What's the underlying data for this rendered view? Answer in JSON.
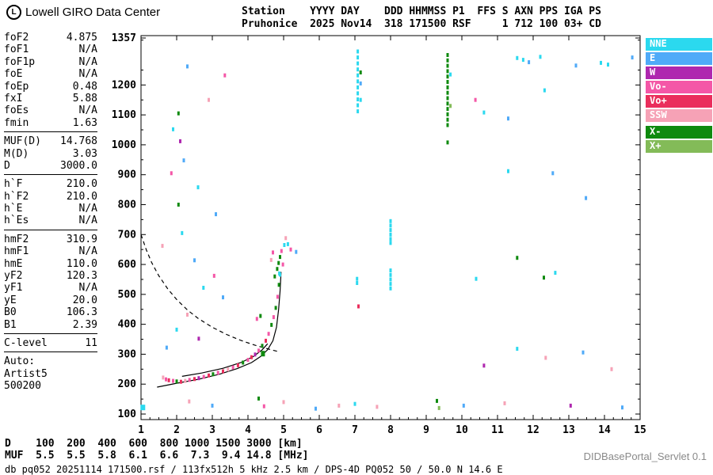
{
  "branding": {
    "logo_text": "Lowell GIRO Data Center"
  },
  "header": {
    "line1": "Station    YYYY DAY    DDD HHMMSS P1  FFS S AXN PPS IGA PS",
    "line2": "Pruhonice  2025 Nov14  318 171500 RSF     1 712 100 03+ CD"
  },
  "params": {
    "groups": [
      {
        "rows": [
          [
            "foF2",
            "4.875"
          ],
          [
            "foF1",
            "N/A"
          ],
          [
            "foF1p",
            "N/A"
          ],
          [
            "foE",
            "N/A"
          ],
          [
            "foEp",
            "0.48"
          ],
          [
            "fxI",
            "5.88"
          ],
          [
            "foEs",
            "N/A"
          ],
          [
            "fmin",
            "1.63"
          ]
        ]
      },
      {
        "rows": [
          [
            "MUF(D)",
            "14.768"
          ],
          [
            "M(D)",
            "3.03"
          ],
          [
            "D",
            "3000.0"
          ]
        ]
      },
      {
        "rows": [
          [
            "h`F",
            "210.0"
          ],
          [
            "h`F2",
            "210.0"
          ],
          [
            "h`E",
            "N/A"
          ],
          [
            "h`Es",
            "N/A"
          ]
        ]
      },
      {
        "rows": [
          [
            "hmF2",
            "310.9"
          ],
          [
            "hmF1",
            "N/A"
          ],
          [
            "hmE",
            "110.0"
          ],
          [
            "yF2",
            "120.3"
          ],
          [
            "yF1",
            "N/A"
          ],
          [
            "yE",
            "20.0"
          ],
          [
            "B0",
            "106.3"
          ],
          [
            "B1",
            "2.39"
          ]
        ]
      },
      {
        "rows": [
          [
            "C-level",
            "11"
          ]
        ]
      }
    ],
    "auto_block": [
      "Auto:",
      "Artist5",
      "500200"
    ]
  },
  "legend": {
    "items": [
      {
        "label": "NNE",
        "color": "#2bd9ef"
      },
      {
        "label": "E",
        "color": "#4faaf8"
      },
      {
        "label": "W",
        "color": "#af27af"
      },
      {
        "label": "Vo-",
        "color": "#f457a7"
      },
      {
        "label": "Vo+",
        "color": "#ea2e5c"
      },
      {
        "label": "SSW",
        "color": "#f6a2b6"
      },
      {
        "label": "X-",
        "color": "#0f8a0f"
      },
      {
        "label": "X+",
        "color": "#83bb58"
      }
    ]
  },
  "chart_data": {
    "type": "scatter",
    "title": "Pruhonice ionogram 2025 Nov14 318 171500",
    "xlabel": "[MHz]",
    "ylabel": "[km]",
    "xlim": [
      1,
      15
    ],
    "ylim": [
      100,
      1357
    ],
    "x_ticks": [
      1,
      2,
      3,
      4,
      5,
      6,
      7,
      8,
      9,
      10,
      11,
      12,
      13,
      14,
      15
    ],
    "y_ticks": [
      100,
      200,
      300,
      400,
      500,
      600,
      700,
      800,
      900,
      1000,
      1100,
      1200,
      1357
    ],
    "grid": false,
    "legend_position": "right-outside",
    "series_note": "points are [frequency_MHz, virtual_height_km, echo_type] with optional [w,h] pixel size",
    "points": [
      [
        2.3,
        1262,
        "E"
      ],
      [
        3.35,
        1232,
        "Vo-"
      ],
      [
        2.9,
        1150,
        "SSW"
      ],
      [
        2.05,
        1105,
        "X-"
      ],
      [
        1.9,
        1052,
        "NNE"
      ],
      [
        2.1,
        1012,
        "W"
      ],
      [
        2.2,
        948,
        "E"
      ],
      [
        1.85,
        905,
        "Vo-"
      ],
      [
        2.6,
        858,
        "NNE"
      ],
      [
        2.05,
        800,
        "X-"
      ],
      [
        3.1,
        768,
        "E"
      ],
      [
        2.15,
        705,
        "NNE"
      ],
      [
        1.6,
        662,
        "SSW"
      ],
      [
        2.5,
        614,
        "E"
      ],
      [
        3.05,
        562,
        "Vo-"
      ],
      [
        2.75,
        522,
        "NNE"
      ],
      [
        3.3,
        490,
        "E"
      ],
      [
        2.3,
        432,
        "SSW"
      ],
      [
        2.0,
        382,
        "NNE"
      ],
      [
        2.62,
        352,
        "W"
      ],
      [
        1.72,
        322,
        "E"
      ],
      [
        7.08,
        1312,
        "NNE"
      ],
      [
        7.08,
        1292,
        "NNE"
      ],
      [
        7.08,
        1272,
        "NNE"
      ],
      [
        7.08,
        1252,
        "NNE"
      ],
      [
        7.08,
        1232,
        "NNE"
      ],
      [
        7.08,
        1212,
        "NNE"
      ],
      [
        7.08,
        1192,
        "NNE"
      ],
      [
        7.08,
        1172,
        "NNE"
      ],
      [
        7.08,
        1152,
        "NNE"
      ],
      [
        7.08,
        1132,
        "NNE"
      ],
      [
        7.08,
        1112,
        "NNE"
      ],
      [
        7.16,
        1242,
        "X-"
      ],
      [
        7.16,
        1205,
        "E"
      ],
      [
        7.16,
        1150,
        "NNE"
      ],
      [
        9.6,
        1300,
        "X-"
      ],
      [
        9.6,
        1282,
        "X-"
      ],
      [
        9.6,
        1264,
        "X-"
      ],
      [
        9.6,
        1246,
        "X-"
      ],
      [
        9.6,
        1228,
        "X-"
      ],
      [
        9.6,
        1210,
        "X-"
      ],
      [
        9.6,
        1192,
        "X-"
      ],
      [
        9.6,
        1174,
        "X-"
      ],
      [
        9.6,
        1156,
        "X-"
      ],
      [
        9.6,
        1138,
        "X-"
      ],
      [
        9.6,
        1120,
        "X-"
      ],
      [
        9.6,
        1102,
        "X-"
      ],
      [
        9.6,
        1084,
        "X-"
      ],
      [
        9.6,
        1066,
        "X-"
      ],
      [
        9.68,
        1235,
        "NNE"
      ],
      [
        9.68,
        1130,
        "X+"
      ],
      [
        9.6,
        1008,
        "X-"
      ],
      [
        11.55,
        1290,
        "NNE"
      ],
      [
        11.72,
        1284,
        "NNE"
      ],
      [
        11.88,
        1276,
        "E"
      ],
      [
        12.2,
        1294,
        "NNE"
      ],
      [
        12.32,
        1182,
        "NNE"
      ],
      [
        13.2,
        1265,
        "E"
      ],
      [
        13.9,
        1274,
        "NNE"
      ],
      [
        14.1,
        1268,
        "NNE"
      ],
      [
        14.78,
        1292,
        "E"
      ],
      [
        10.38,
        1150,
        "Vo-"
      ],
      [
        10.62,
        1108,
        "NNE"
      ],
      [
        11.3,
        1088,
        "E"
      ],
      [
        11.3,
        912,
        "NNE"
      ],
      [
        12.55,
        905,
        "E"
      ],
      [
        13.48,
        822,
        "E"
      ],
      [
        8.0,
        745,
        "NNE"
      ],
      [
        8.0,
        730,
        "NNE"
      ],
      [
        8.0,
        715,
        "NNE"
      ],
      [
        8.0,
        700,
        "NNE"
      ],
      [
        8.0,
        685,
        "NNE"
      ],
      [
        8.0,
        672,
        "NNE"
      ],
      [
        8.0,
        580,
        "NNE"
      ],
      [
        8.0,
        565,
        "NNE"
      ],
      [
        8.0,
        550,
        "NNE"
      ],
      [
        8.0,
        535,
        "NNE"
      ],
      [
        8.0,
        520,
        "NNE"
      ],
      [
        7.06,
        552,
        "NNE"
      ],
      [
        7.06,
        538,
        "NNE"
      ],
      [
        7.1,
        460,
        "Vo+"
      ],
      [
        10.4,
        552,
        "NNE"
      ],
      [
        11.55,
        622,
        "X-"
      ],
      [
        12.3,
        556,
        "X-"
      ],
      [
        12.62,
        572,
        "NNE"
      ],
      [
        11.55,
        318,
        "NNE"
      ],
      [
        12.35,
        288,
        "SSW"
      ],
      [
        13.4,
        306,
        "E"
      ],
      [
        10.62,
        262,
        "W"
      ],
      [
        14.2,
        250,
        "SSW"
      ],
      [
        4.82,
        585,
        "X-"
      ],
      [
        4.86,
        605,
        "X-"
      ],
      [
        4.9,
        625,
        "X-"
      ],
      [
        4.94,
        645,
        "Vo-"
      ],
      [
        4.98,
        600,
        "Vo-"
      ],
      [
        4.88,
        570,
        "NNE"
      ],
      [
        5.02,
        665,
        "NNE"
      ],
      [
        5.06,
        688,
        "SSW"
      ],
      [
        5.12,
        668,
        "NNE"
      ],
      [
        5.2,
        650,
        "Vo-"
      ],
      [
        5.35,
        642,
        "E"
      ],
      [
        4.75,
        560,
        "X-"
      ],
      [
        4.7,
        640,
        "Vo-"
      ],
      [
        4.65,
        615,
        "SSW"
      ],
      [
        1.62,
        222,
        "SSW"
      ],
      [
        1.7,
        216,
        "Vo-"
      ],
      [
        1.78,
        213,
        "Vo+"
      ],
      [
        1.9,
        211,
        "Vo-"
      ],
      [
        2.0,
        209,
        "X-"
      ],
      [
        2.12,
        208,
        "Vo+"
      ],
      [
        2.24,
        211,
        "SSW"
      ],
      [
        2.36,
        214,
        "Vo-"
      ],
      [
        2.5,
        217,
        "Vo+"
      ],
      [
        2.62,
        220,
        "W"
      ],
      [
        2.76,
        224,
        "Vo-"
      ],
      [
        2.9,
        229,
        "Vo+"
      ],
      [
        3.02,
        233,
        "X-"
      ],
      [
        3.16,
        238,
        "Vo-"
      ],
      [
        3.3,
        243,
        "Vo+"
      ],
      [
        3.44,
        249,
        "SSW"
      ],
      [
        3.58,
        256,
        "Vo-"
      ],
      [
        3.72,
        263,
        "Vo+"
      ],
      [
        3.86,
        272,
        "X-"
      ],
      [
        4.0,
        281,
        "Vo-"
      ],
      [
        4.1,
        290,
        "Vo+"
      ],
      [
        4.2,
        299,
        "W"
      ],
      [
        4.3,
        312,
        "Vo-"
      ],
      [
        4.42,
        302,
        "X-",
        5,
        7
      ],
      [
        4.4,
        328,
        "X-"
      ],
      [
        4.5,
        345,
        "Vo+"
      ],
      [
        4.58,
        368,
        "Vo-"
      ],
      [
        4.66,
        398,
        "X-"
      ],
      [
        4.72,
        424,
        "Vo-"
      ],
      [
        4.78,
        455,
        "X-"
      ],
      [
        4.83,
        492,
        "Vo-"
      ],
      [
        4.87,
        532,
        "X-"
      ],
      [
        4.9,
        566,
        "NNE"
      ],
      [
        4.25,
        418,
        "Vo-"
      ],
      [
        4.35,
        428,
        "X-"
      ],
      [
        1.05,
        122,
        "NNE",
        6,
        7
      ],
      [
        2.35,
        142,
        "SSW"
      ],
      [
        3.0,
        128,
        "E"
      ],
      [
        4.3,
        152,
        "X-"
      ],
      [
        4.45,
        126,
        "Vo-"
      ],
      [
        5.0,
        140,
        "SSW"
      ],
      [
        5.9,
        118,
        "E"
      ],
      [
        6.55,
        128,
        "SSW"
      ],
      [
        7.0,
        134,
        "NNE"
      ],
      [
        7.62,
        124,
        "SSW"
      ],
      [
        9.3,
        144,
        "X-"
      ],
      [
        9.36,
        120,
        "X+"
      ],
      [
        10.05,
        128,
        "E"
      ],
      [
        11.2,
        136,
        "SSW"
      ],
      [
        13.05,
        128,
        "W"
      ],
      [
        14.5,
        122,
        "E"
      ]
    ],
    "profile_curve": [
      [
        1.45,
        190
      ],
      [
        2.0,
        203
      ],
      [
        2.6,
        216
      ],
      [
        3.2,
        233
      ],
      [
        3.7,
        252
      ],
      [
        4.1,
        272
      ],
      [
        4.35,
        292
      ],
      [
        4.55,
        315
      ],
      [
        4.7,
        345
      ],
      [
        4.8,
        390
      ],
      [
        4.86,
        450
      ],
      [
        4.9,
        510
      ],
      [
        4.93,
        575
      ]
    ],
    "second_curve": [
      [
        2.15,
        226
      ],
      [
        2.7,
        237
      ],
      [
        3.3,
        253
      ],
      [
        3.8,
        272
      ],
      [
        4.15,
        292
      ],
      [
        4.4,
        315
      ],
      [
        4.55,
        335
      ]
    ],
    "dashed_curve": [
      [
        1.0,
        700
      ],
      [
        1.15,
        648
      ],
      [
        1.3,
        606
      ],
      [
        1.5,
        562
      ],
      [
        1.75,
        518
      ],
      [
        2.0,
        483
      ],
      [
        2.3,
        448
      ],
      [
        2.6,
        420
      ],
      [
        3.0,
        390
      ],
      [
        3.4,
        366
      ],
      [
        3.8,
        346
      ],
      [
        4.2,
        330
      ],
      [
        4.55,
        318
      ],
      [
        4.875,
        308
      ]
    ]
  },
  "muf_table": {
    "row_d": "D    100  200  400  600  800 1000 1500 3000 [km]",
    "row_muf": "MUF  5.5  5.5  5.8  6.1  6.6  7.3  9.4 14.8 [MHz]"
  },
  "footer": {
    "status_line": "db pq052 20251114 171500.rsf / 113fx512h 5 kHz 2.5 km / DPS-4D PQ052 50 / 50.0 N 14.6 E",
    "watermark": "DIDBasePortal_Servlet 0.1"
  }
}
